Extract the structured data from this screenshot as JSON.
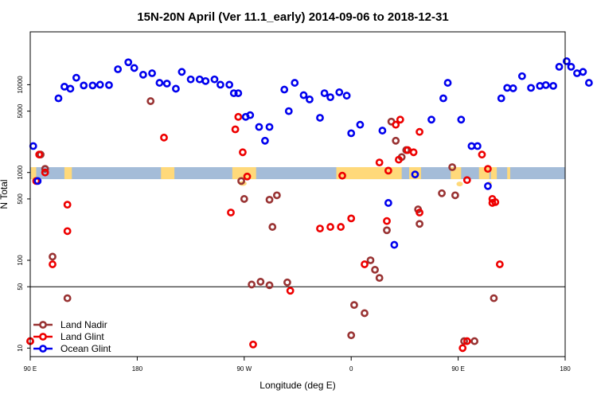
{
  "chart_data": {
    "type": "scatter",
    "title": "15N-20N April (Ver 11.1_early)   2014-09-06 to 2018-12-31",
    "xlabel": "Longitude (deg E)",
    "ylabel": "N Total",
    "y_scale": "log",
    "xlim": [
      0,
      360
    ],
    "ylim": [
      8,
      40000
    ],
    "x_ticks": [
      {
        "pos": 0,
        "label": "90 E"
      },
      {
        "pos": 72,
        "label": "180"
      },
      {
        "pos": 144,
        "label": "90 W"
      },
      {
        "pos": 216,
        "label": "0"
      },
      {
        "pos": 288,
        "label": "90 E"
      },
      {
        "pos": 360,
        "label": "180"
      }
    ],
    "y_ticks": [
      10,
      50,
      100,
      500,
      1000,
      5000,
      10000
    ],
    "reference_line_y": 50,
    "band": {
      "y_low": 840,
      "y_high": 1150,
      "color": "#a4bcd8"
    },
    "colors": {
      "land_nadir": "#993333",
      "land_glint": "#ee0000",
      "ocean_glint": "#0000ee",
      "band": "#a4bcd8",
      "land_mask": "#ffd97a"
    },
    "legend_position": "bottom-left",
    "series": [
      {
        "name": "Land Nadir",
        "color": "#993333",
        "points": [
          [
            0,
            12
          ],
          [
            7,
            1600
          ],
          [
            10,
            1100
          ],
          [
            15,
            110
          ],
          [
            25,
            37
          ],
          [
            81,
            6500
          ],
          [
            142,
            800
          ],
          [
            144,
            500
          ],
          [
            149,
            53
          ],
          [
            155,
            57
          ],
          [
            161,
            52
          ],
          [
            161,
            490
          ],
          [
            163,
            240
          ],
          [
            166,
            550
          ],
          [
            173,
            56
          ],
          [
            216,
            14
          ],
          [
            218,
            31
          ],
          [
            225,
            25
          ],
          [
            229,
            100
          ],
          [
            232,
            78
          ],
          [
            235,
            63
          ],
          [
            240,
            220
          ],
          [
            243,
            3800
          ],
          [
            246,
            2300
          ],
          [
            250,
            1500
          ],
          [
            253,
            1800
          ],
          [
            261,
            380
          ],
          [
            262,
            260
          ],
          [
            277,
            580
          ],
          [
            284,
            1150
          ],
          [
            286,
            550
          ],
          [
            292,
            12
          ],
          [
            299,
            12
          ],
          [
            312,
            37
          ]
        ]
      },
      {
        "name": "Land Glint",
        "color": "#ee0000",
        "points": [
          [
            0,
            12
          ],
          [
            4,
            800
          ],
          [
            6,
            1600
          ],
          [
            10,
            1000
          ],
          [
            15,
            90
          ],
          [
            25,
            430
          ],
          [
            25,
            215
          ],
          [
            90,
            2500
          ],
          [
            135,
            350
          ],
          [
            138,
            3100
          ],
          [
            140,
            4300
          ],
          [
            143,
            1700
          ],
          [
            146,
            900
          ],
          [
            150,
            11
          ],
          [
            175,
            45
          ],
          [
            195,
            230
          ],
          [
            202,
            240
          ],
          [
            209,
            240
          ],
          [
            210,
            920
          ],
          [
            216,
            300
          ],
          [
            225,
            90
          ],
          [
            235,
            1300
          ],
          [
            240,
            280
          ],
          [
            241,
            1050
          ],
          [
            246,
            3500
          ],
          [
            248,
            1400
          ],
          [
            249,
            4000
          ],
          [
            254,
            1800
          ],
          [
            258,
            1700
          ],
          [
            262,
            2900
          ],
          [
            262,
            350
          ],
          [
            291,
            10
          ],
          [
            294,
            820
          ],
          [
            294,
            12
          ],
          [
            304,
            1600
          ],
          [
            308,
            1100
          ],
          [
            311,
            500
          ],
          [
            311,
            450
          ],
          [
            313,
            460
          ],
          [
            316,
            90
          ]
        ]
      },
      {
        "name": "Ocean Glint",
        "color": "#0000ee",
        "points": [
          [
            2,
            2000
          ],
          [
            5,
            800
          ],
          [
            19,
            7000
          ],
          [
            23,
            9500
          ],
          [
            27,
            9000
          ],
          [
            31,
            12000
          ],
          [
            36,
            9800
          ],
          [
            42,
            9800
          ],
          [
            47,
            10000
          ],
          [
            53,
            9900
          ],
          [
            59,
            15000
          ],
          [
            66,
            18000
          ],
          [
            70,
            15500
          ],
          [
            76,
            13000
          ],
          [
            82,
            13500
          ],
          [
            87,
            10500
          ],
          [
            92,
            10300
          ],
          [
            98,
            9000
          ],
          [
            102,
            14000
          ],
          [
            108,
            11500
          ],
          [
            114,
            11500
          ],
          [
            118,
            11000
          ],
          [
            124,
            11500
          ],
          [
            128,
            10000
          ],
          [
            134,
            10000
          ],
          [
            137,
            8000
          ],
          [
            140,
            8000
          ],
          [
            145,
            4300
          ],
          [
            148,
            4500
          ],
          [
            154,
            3300
          ],
          [
            158,
            2300
          ],
          [
            161,
            3300
          ],
          [
            171,
            8800
          ],
          [
            174,
            5000
          ],
          [
            178,
            10500
          ],
          [
            184,
            7600
          ],
          [
            188,
            6800
          ],
          [
            195,
            4200
          ],
          [
            198,
            8000
          ],
          [
            202,
            7200
          ],
          [
            208,
            8200
          ],
          [
            213,
            7500
          ],
          [
            216,
            2800
          ],
          [
            222,
            3500
          ],
          [
            237,
            3000
          ],
          [
            241,
            450
          ],
          [
            245,
            150
          ],
          [
            259,
            950
          ],
          [
            270,
            4000
          ],
          [
            278,
            7000
          ],
          [
            281,
            10500
          ],
          [
            290,
            4000
          ],
          [
            297,
            2000
          ],
          [
            301,
            2000
          ],
          [
            308,
            700
          ],
          [
            317,
            7000
          ],
          [
            321,
            9200
          ],
          [
            325,
            9100
          ],
          [
            331,
            12500
          ],
          [
            337,
            9200
          ],
          [
            343,
            9700
          ],
          [
            347,
            9900
          ],
          [
            352,
            9700
          ],
          [
            356,
            16000
          ],
          [
            361,
            18500
          ],
          [
            364,
            16000
          ],
          [
            368,
            13500
          ],
          [
            372,
            14000
          ],
          [
            376,
            10500
          ]
        ]
      }
    ]
  }
}
